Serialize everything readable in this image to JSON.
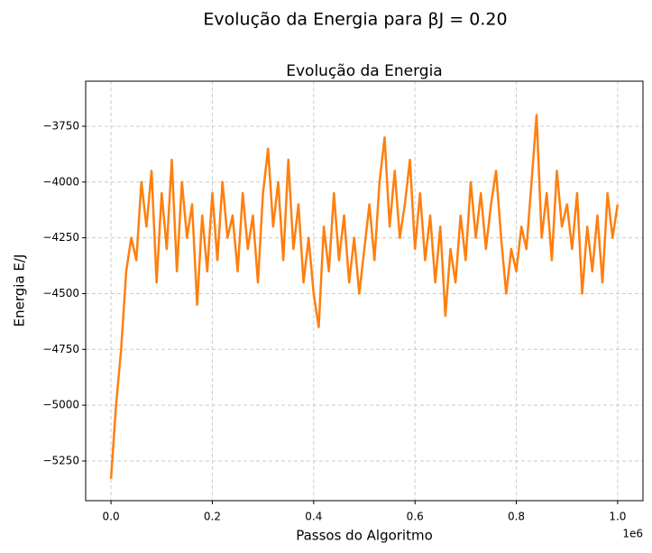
{
  "chart_data": {
    "type": "line",
    "suptitle": "Evolução da Energia para βJ = 0.20",
    "title": "Evolução da Energia",
    "x_label": "Passos do Algoritmo",
    "y_label": "Energia E/J",
    "x_offset_label": "1e6",
    "color": "#ff7f0e",
    "grid": true,
    "xlim": [
      -50000,
      1050000
    ],
    "ylim": [
      -5428,
      -3548
    ],
    "xticks": [
      {
        "value": 0,
        "label": "0.0"
      },
      {
        "value": 200000,
        "label": "0.2"
      },
      {
        "value": 400000,
        "label": "0.4"
      },
      {
        "value": 600000,
        "label": "0.6"
      },
      {
        "value": 800000,
        "label": "0.8"
      },
      {
        "value": 1000000,
        "label": "1.0"
      }
    ],
    "yticks": [
      {
        "value": -5250,
        "label": "−5250"
      },
      {
        "value": -5000,
        "label": "−5000"
      },
      {
        "value": -4750,
        "label": "−4750"
      },
      {
        "value": -4500,
        "label": "−4500"
      },
      {
        "value": -4250,
        "label": "−4250"
      },
      {
        "value": -4000,
        "label": "−4000"
      },
      {
        "value": -3750,
        "label": "−3750"
      }
    ],
    "x": [
      0,
      10000,
      20000,
      30000,
      40000,
      50000,
      60000,
      70000,
      80000,
      90000,
      100000,
      110000,
      120000,
      130000,
      140000,
      150000,
      160000,
      170000,
      180000,
      190000,
      200000,
      210000,
      220000,
      230000,
      240000,
      250000,
      260000,
      270000,
      280000,
      290000,
      300000,
      310000,
      320000,
      330000,
      340000,
      350000,
      360000,
      370000,
      380000,
      390000,
      400000,
      410000,
      420000,
      430000,
      440000,
      450000,
      460000,
      470000,
      480000,
      490000,
      500000,
      510000,
      520000,
      530000,
      540000,
      550000,
      560000,
      570000,
      580000,
      590000,
      600000,
      610000,
      620000,
      630000,
      640000,
      650000,
      660000,
      670000,
      680000,
      690000,
      700000,
      710000,
      720000,
      730000,
      740000,
      750000,
      760000,
      770000,
      780000,
      790000,
      800000,
      810000,
      820000,
      830000,
      840000,
      850000,
      860000,
      870000,
      880000,
      890000,
      900000,
      910000,
      920000,
      930000,
      940000,
      950000,
      960000,
      970000,
      980000,
      990000,
      1000000
    ],
    "values": [
      -5330,
      -5000,
      -4750,
      -4400,
      -4250,
      -4350,
      -4000,
      -4200,
      -3950,
      -4450,
      -4050,
      -4300,
      -3900,
      -4400,
      -4000,
      -4250,
      -4100,
      -4550,
      -4150,
      -4400,
      -4050,
      -4350,
      -4000,
      -4250,
      -4150,
      -4400,
      -4050,
      -4300,
      -4150,
      -4450,
      -4050,
      -3850,
      -4200,
      -4000,
      -4350,
      -3900,
      -4300,
      -4100,
      -4450,
      -4250,
      -4500,
      -4650,
      -4200,
      -4400,
      -4050,
      -4350,
      -4150,
      -4450,
      -4250,
      -4500,
      -4300,
      -4100,
      -4350,
      -4000,
      -3800,
      -4200,
      -3950,
      -4250,
      -4100,
      -3900,
      -4300,
      -4050,
      -4350,
      -4150,
      -4450,
      -4200,
      -4600,
      -4300,
      -4450,
      -4150,
      -4350,
      -4000,
      -4250,
      -4050,
      -4300,
      -4100,
      -3950,
      -4250,
      -4500,
      -4300,
      -4400,
      -4200,
      -4300,
      -4000,
      -3700,
      -4250,
      -4050,
      -4350,
      -3950,
      -4200,
      -4100,
      -4300,
      -4050,
      -4500,
      -4200,
      -4400,
      -4150,
      -4450,
      -4050,
      -4250,
      -4100
    ]
  }
}
